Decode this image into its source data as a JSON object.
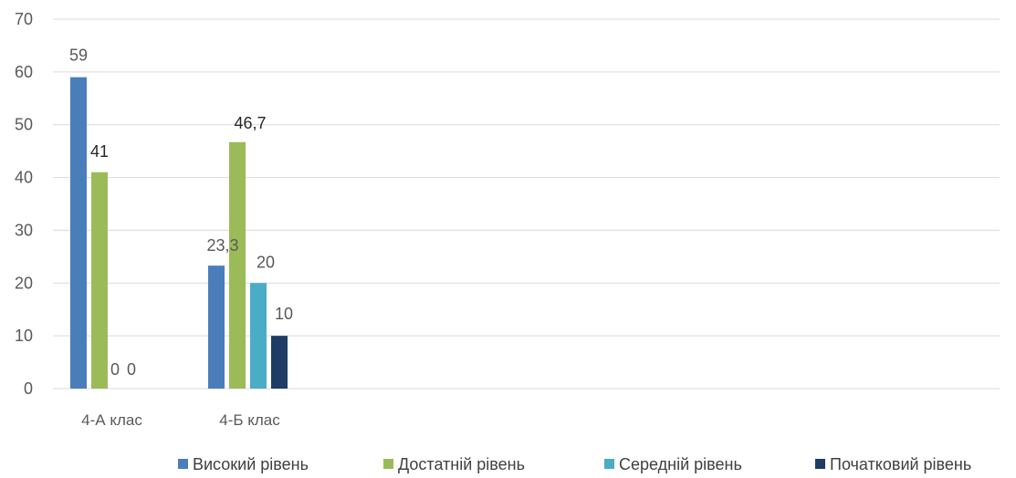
{
  "chart_data": {
    "type": "bar",
    "title": "",
    "xlabel": "",
    "ylabel": "",
    "ylim": [
      0,
      70
    ],
    "yticks": [
      0,
      10,
      20,
      30,
      40,
      50,
      60,
      70
    ],
    "ytick_labels": [
      "0",
      "10",
      "20",
      "30",
      "40",
      "50",
      "60",
      "70"
    ],
    "grid": true,
    "legend": "bottom",
    "categories": [
      "4-А клас",
      "4-Б клас"
    ],
    "series": [
      {
        "name": "Високий рівень",
        "color": "#4a7ebb",
        "values": [
          59,
          23.3
        ],
        "labels": [
          "59",
          "23,3"
        ]
      },
      {
        "name": "Достатній рівень",
        "color": "#9bbb59",
        "values": [
          41,
          46.7
        ],
        "labels": [
          "41",
          "46,7"
        ]
      },
      {
        "name": "Середній рівень",
        "color": "#4bacc6",
        "values": [
          0,
          20
        ],
        "labels": [
          "0",
          "20"
        ]
      },
      {
        "name": "Початковий рівень",
        "color": "#1f3d64",
        "values": [
          0,
          10
        ],
        "labels": [
          "0",
          "10"
        ]
      }
    ]
  }
}
